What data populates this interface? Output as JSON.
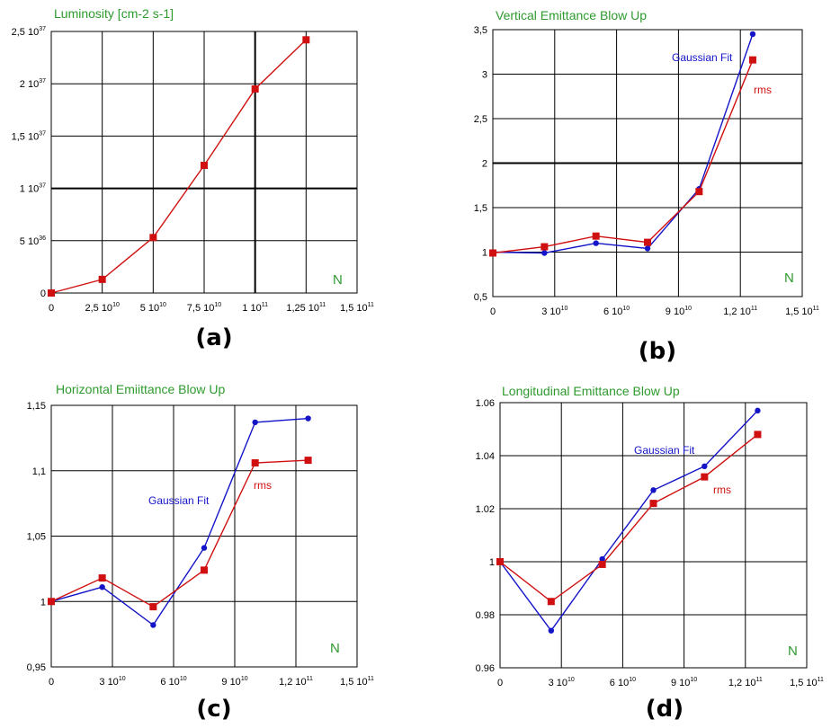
{
  "colors": {
    "fit": "#1414c8",
    "rms": "#d01010",
    "title": "#2e9a2e"
  },
  "chart_data": [
    {
      "id": "a",
      "type": "line",
      "panel_label": "(a)",
      "title": "Luminosity [cm-2 s-1]",
      "xlabel": "N",
      "x_ticks": [
        {
          "v": 0,
          "m": "0",
          "e": ""
        },
        {
          "v": 25000000000.0,
          "m": "2,5 10",
          "e": "10"
        },
        {
          "v": 50000000000.0,
          "m": "5 10",
          "e": "10"
        },
        {
          "v": 75000000000.0,
          "m": "7,5 10",
          "e": "10"
        },
        {
          "v": 100000000000.0,
          "m": "1 10",
          "e": "11"
        },
        {
          "v": 125000000000.0,
          "m": "1,25 10",
          "e": "11"
        },
        {
          "v": 150000000000.0,
          "m": "1,5 10",
          "e": "11"
        }
      ],
      "y_ticks": [
        {
          "v": 0,
          "m": "0",
          "e": ""
        },
        {
          "v": 5e+36,
          "m": "5 10",
          "e": "36"
        },
        {
          "v": 1e+37,
          "m": "1 10",
          "e": "37"
        },
        {
          "v": 1.5e+37,
          "m": "1,5 10",
          "e": "37"
        },
        {
          "v": 2e+37,
          "m": "2 10",
          "e": "37"
        },
        {
          "v": 2.5e+37,
          "m": "2,5 10",
          "e": "37"
        }
      ],
      "xlim": [
        0,
        150000000000.0
      ],
      "ylim": [
        0,
        2.5e+37
      ],
      "series": [
        {
          "name": "",
          "color": "#d01010",
          "marker": "square",
          "x": [
            0,
            25000000000.0,
            50000000000.0,
            75000000000.0,
            100000000000.0,
            125000000000.0
          ],
          "y": [
            0,
            1.3e+36,
            5.3e+36,
            1.22e+37,
            1.95e+37,
            2.42e+37
          ]
        }
      ]
    },
    {
      "id": "b",
      "type": "line",
      "panel_label": "(b)",
      "title": "Vertical Emittance Blow Up",
      "xlabel": "N",
      "x_ticks": [
        {
          "v": 0,
          "m": "0",
          "e": ""
        },
        {
          "v": 30000000000.0,
          "m": "3 10",
          "e": "10"
        },
        {
          "v": 60000000000.0,
          "m": "6 10",
          "e": "10"
        },
        {
          "v": 90000000000.0,
          "m": "9 10",
          "e": "10"
        },
        {
          "v": 120000000000.0,
          "m": "1,2 10",
          "e": "11"
        },
        {
          "v": 150000000000.0,
          "m": "1,5 10",
          "e": "11"
        }
      ],
      "y_ticks": [
        {
          "v": 0.5,
          "m": "0,5",
          "e": ""
        },
        {
          "v": 1,
          "m": "1",
          "e": ""
        },
        {
          "v": 1.5,
          "m": "1,5",
          "e": ""
        },
        {
          "v": 2,
          "m": "2",
          "e": ""
        },
        {
          "v": 2.5,
          "m": "2,5",
          "e": ""
        },
        {
          "v": 3,
          "m": "3",
          "e": ""
        },
        {
          "v": 3.5,
          "m": "3,5",
          "e": ""
        }
      ],
      "xlim": [
        0,
        150000000000.0
      ],
      "ylim": [
        0.5,
        3.5
      ],
      "series": [
        {
          "name": "Gaussian Fit",
          "color": "#1414c8",
          "marker": "circle",
          "x": [
            0,
            25000000000.0,
            50000000000.0,
            75000000000.0,
            100000000000.0,
            126000000000.0
          ],
          "y": [
            1.0,
            0.99,
            1.1,
            1.04,
            1.71,
            3.45
          ]
        },
        {
          "name": "rms",
          "color": "#d01010",
          "marker": "square",
          "x": [
            0,
            25000000000.0,
            50000000000.0,
            75000000000.0,
            100000000000.0,
            126000000000.0
          ],
          "y": [
            0.99,
            1.06,
            1.18,
            1.11,
            1.68,
            3.16
          ]
        }
      ]
    },
    {
      "id": "c",
      "type": "line",
      "panel_label": "(c)",
      "title": "Horizontal Emiittance Blow Up",
      "xlabel": "N",
      "x_ticks": [
        {
          "v": 0,
          "m": "0",
          "e": ""
        },
        {
          "v": 30000000000.0,
          "m": "3 10",
          "e": "10"
        },
        {
          "v": 60000000000.0,
          "m": "6 10",
          "e": "10"
        },
        {
          "v": 90000000000.0,
          "m": "9 10",
          "e": "10"
        },
        {
          "v": 120000000000.0,
          "m": "1,2 10",
          "e": "11"
        },
        {
          "v": 150000000000.0,
          "m": "1,5 10",
          "e": "11"
        }
      ],
      "y_ticks": [
        {
          "v": 0.95,
          "m": "0,95",
          "e": ""
        },
        {
          "v": 1.0,
          "m": "1",
          "e": ""
        },
        {
          "v": 1.05,
          "m": "1,05",
          "e": ""
        },
        {
          "v": 1.1,
          "m": "1,1",
          "e": ""
        },
        {
          "v": 1.15,
          "m": "1,15",
          "e": ""
        }
      ],
      "xlim": [
        0,
        150000000000.0
      ],
      "ylim": [
        0.95,
        1.15
      ],
      "series": [
        {
          "name": "Gaussian Fit",
          "color": "#1414c8",
          "marker": "circle",
          "x": [
            0,
            25000000000.0,
            50000000000.0,
            75000000000.0,
            100000000000.0,
            126000000000.0
          ],
          "y": [
            1.0,
            1.011,
            0.982,
            1.041,
            1.137,
            1.14
          ]
        },
        {
          "name": "rms",
          "color": "#d01010",
          "marker": "square",
          "x": [
            0,
            25000000000.0,
            50000000000.0,
            75000000000.0,
            100000000000.0,
            126000000000.0
          ],
          "y": [
            1.0,
            1.018,
            0.996,
            1.024,
            1.106,
            1.108
          ]
        }
      ]
    },
    {
      "id": "d",
      "type": "line",
      "panel_label": "(d)",
      "title": "Longitudinal Emittance Blow Up",
      "xlabel": "N",
      "x_ticks": [
        {
          "v": 0,
          "m": "0",
          "e": ""
        },
        {
          "v": 30000000000.0,
          "m": "3 10",
          "e": "10"
        },
        {
          "v": 60000000000.0,
          "m": "6 10",
          "e": "10"
        },
        {
          "v": 90000000000.0,
          "m": "9 10",
          "e": "10"
        },
        {
          "v": 120000000000.0,
          "m": "1,2 10",
          "e": "11"
        },
        {
          "v": 150000000000.0,
          "m": "1,5 10",
          "e": "11"
        }
      ],
      "y_ticks": [
        {
          "v": 0.96,
          "m": "0.96",
          "e": ""
        },
        {
          "v": 0.98,
          "m": "0.98",
          "e": ""
        },
        {
          "v": 1.0,
          "m": "1",
          "e": ""
        },
        {
          "v": 1.02,
          "m": "1.02",
          "e": ""
        },
        {
          "v": 1.04,
          "m": "1.04",
          "e": ""
        },
        {
          "v": 1.06,
          "m": "1.06",
          "e": ""
        }
      ],
      "xlim": [
        0,
        150000000000.0
      ],
      "ylim": [
        0.96,
        1.06
      ],
      "series": [
        {
          "name": "Gaussian Fit",
          "color": "#1414c8",
          "marker": "circle",
          "x": [
            0,
            25000000000.0,
            50000000000.0,
            75000000000.0,
            100000000000.0,
            126000000000.0
          ],
          "y": [
            1.0,
            0.974,
            1.001,
            1.027,
            1.036,
            1.057
          ]
        },
        {
          "name": "rms",
          "color": "#d01010",
          "marker": "square",
          "x": [
            0,
            25000000000.0,
            50000000000.0,
            75000000000.0,
            100000000000.0,
            126000000000.0
          ],
          "y": [
            1.0,
            0.985,
            0.999,
            1.022,
            1.032,
            1.048
          ]
        }
      ]
    }
  ]
}
